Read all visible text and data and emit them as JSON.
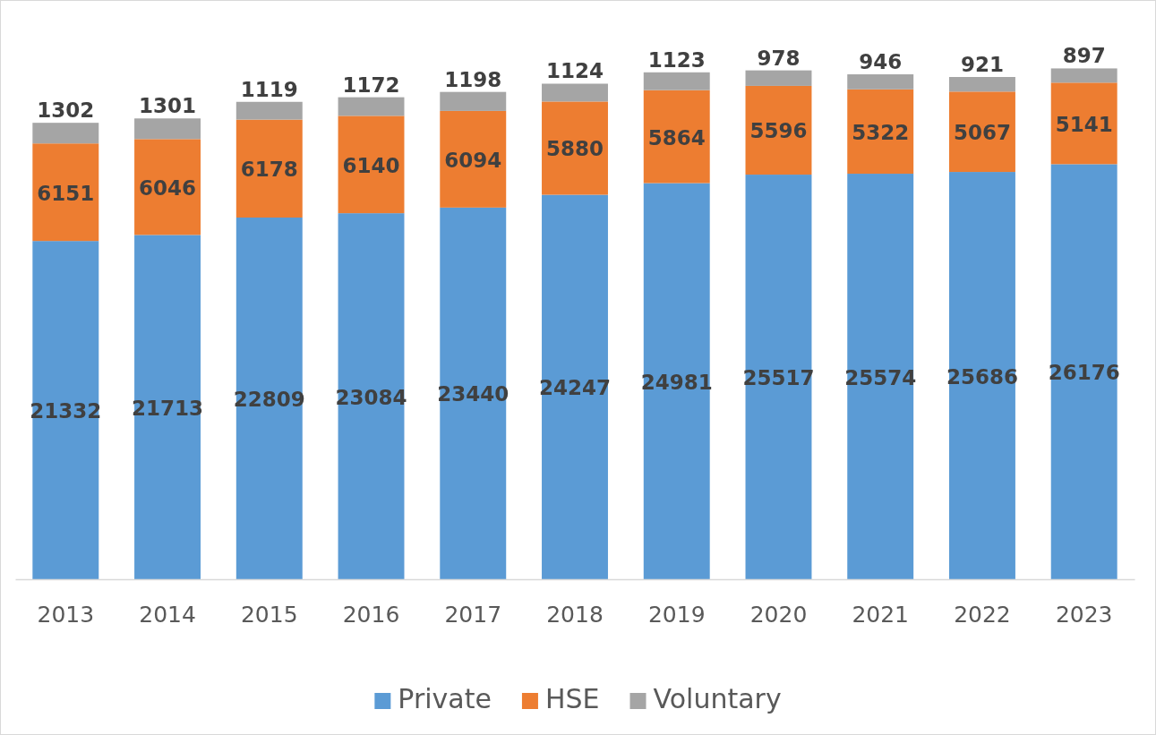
{
  "chart_data": {
    "type": "bar",
    "stacked": true,
    "data_labels": true,
    "legend": "bottom",
    "categories": [
      "2013",
      "2014",
      "2015",
      "2016",
      "2017",
      "2018",
      "2019",
      "2020",
      "2021",
      "2022",
      "2023"
    ],
    "series": [
      {
        "name": "Private",
        "color": "#5b9bd5",
        "values": [
          21332,
          21713,
          22809,
          23084,
          23440,
          24247,
          24981,
          25517,
          25574,
          25686,
          26176
        ]
      },
      {
        "name": "HSE",
        "color": "#ed7d31",
        "values": [
          6151,
          6046,
          6178,
          6140,
          6094,
          5880,
          5864,
          5596,
          5322,
          5067,
          5141
        ]
      },
      {
        "name": "Voluntary",
        "color": "#a5a5a5",
        "values": [
          1302,
          1301,
          1119,
          1172,
          1198,
          1124,
          1123,
          978,
          946,
          921,
          897
        ]
      }
    ]
  }
}
